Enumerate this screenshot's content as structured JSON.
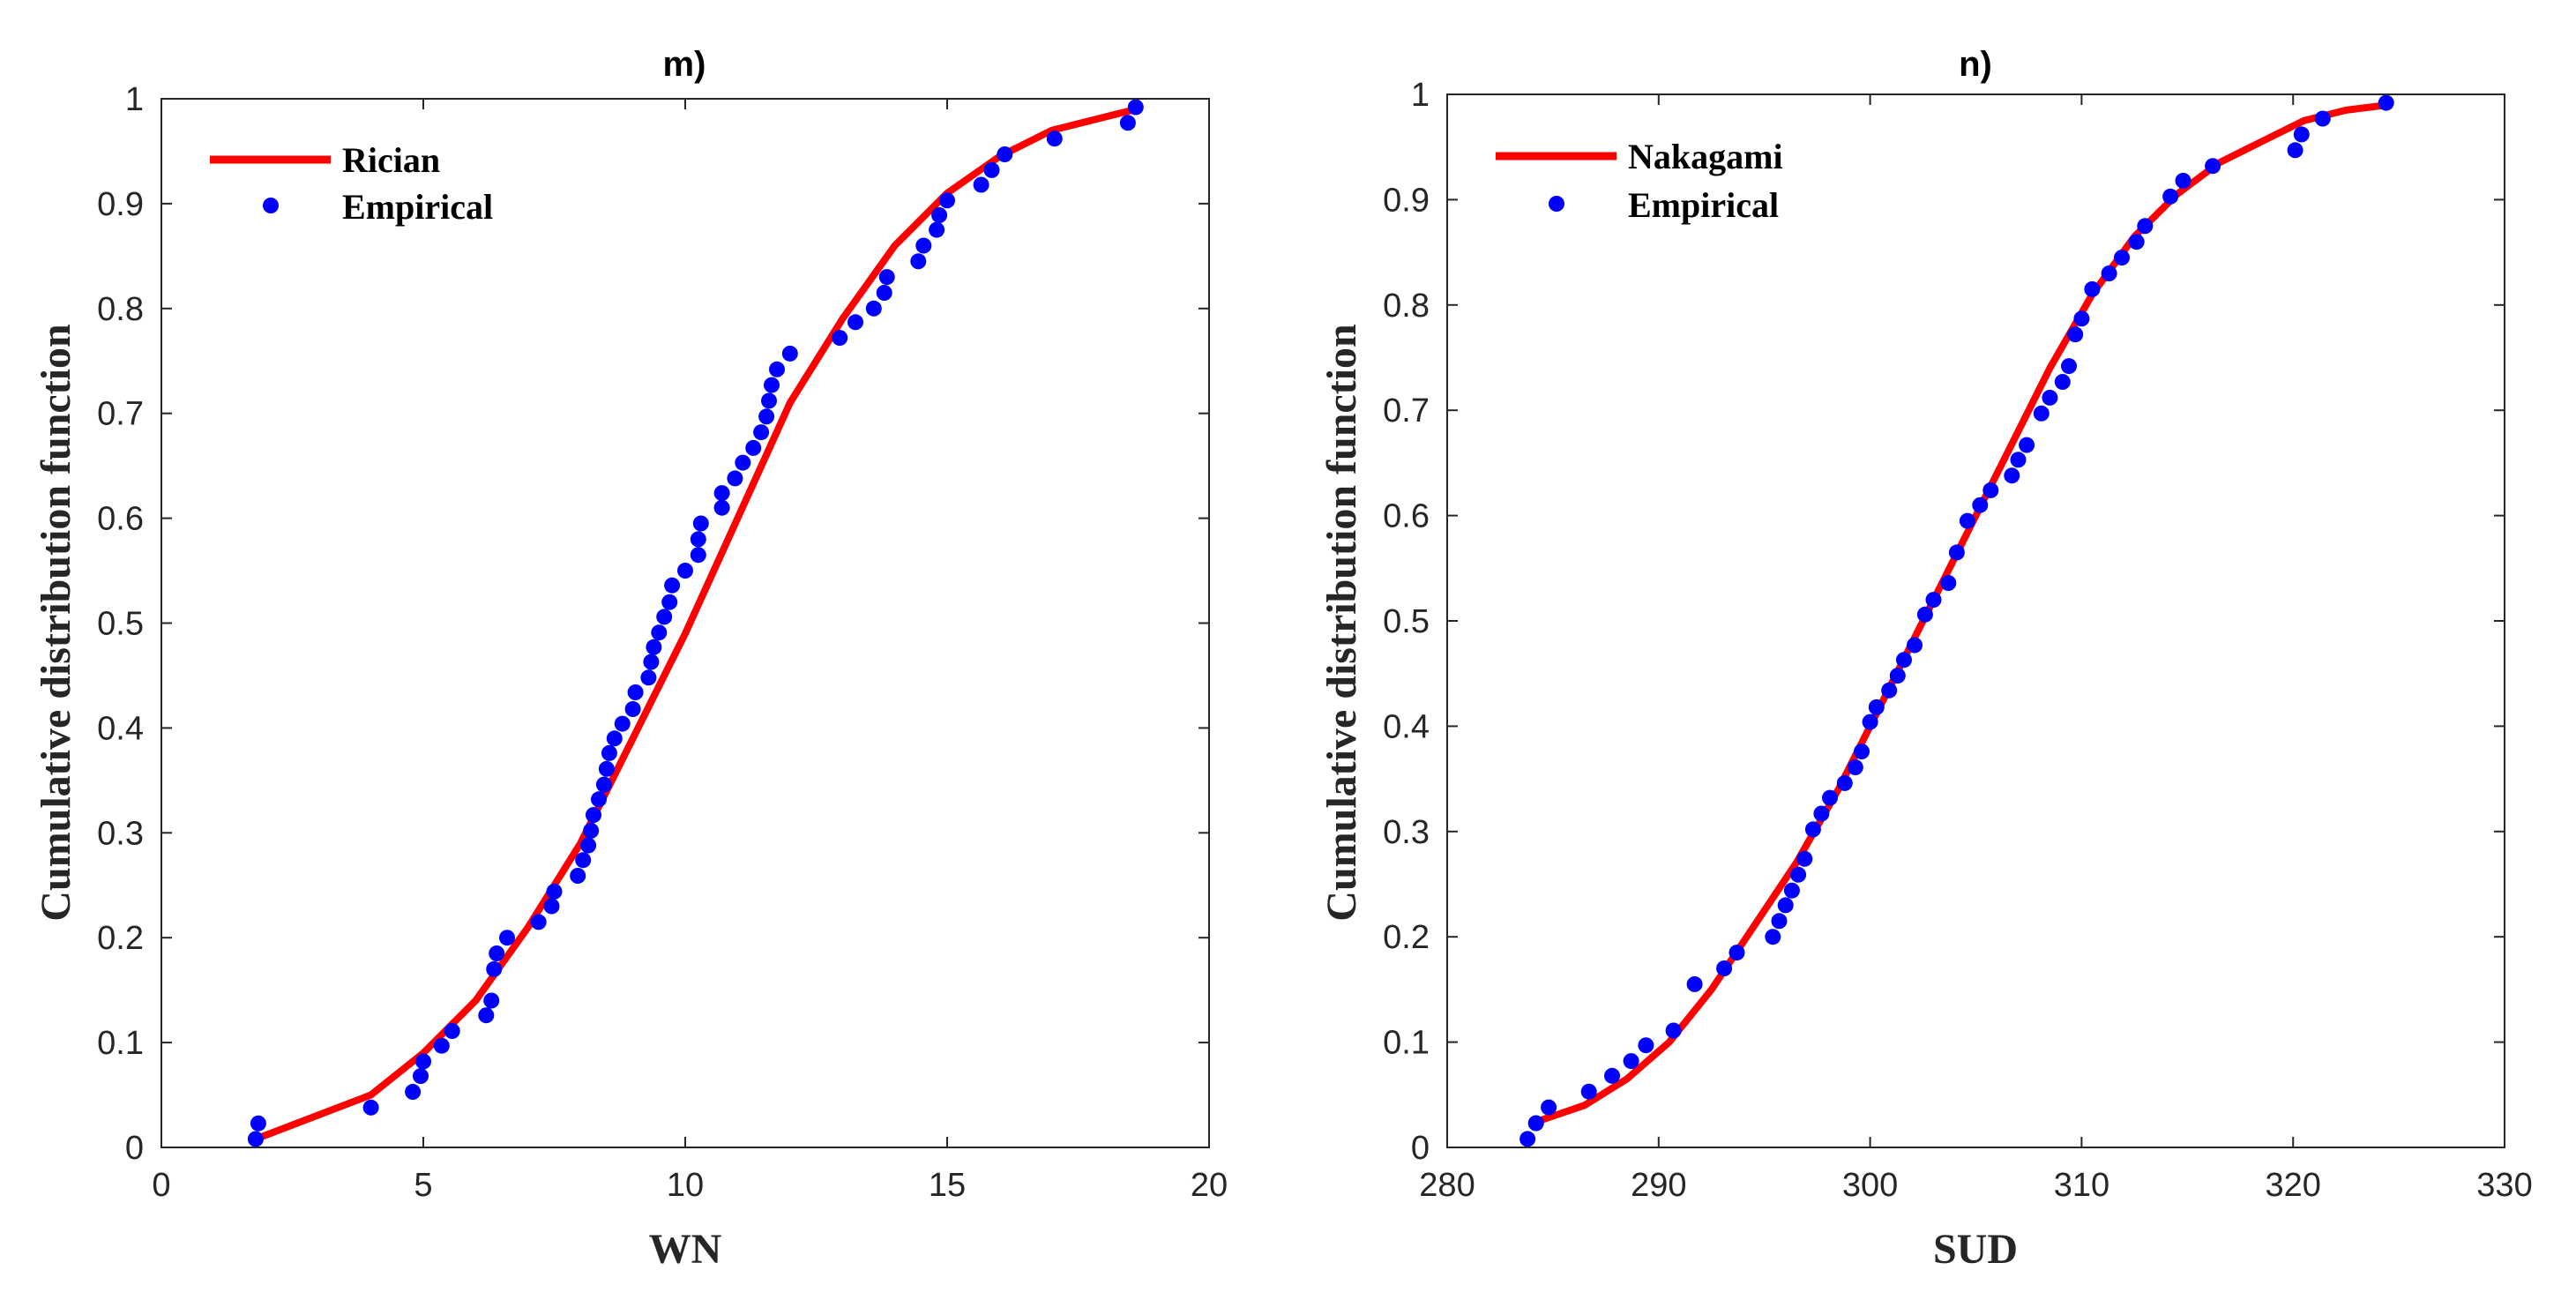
{
  "chart_data": [
    {
      "type": "line+scatter",
      "title": "m)",
      "xlabel": "WN",
      "ylabel": "Cumulative distribution function",
      "xlim": [
        0,
        20
      ],
      "ylim": [
        0,
        1
      ],
      "x_ticks": [
        0,
        5,
        10,
        15,
        20
      ],
      "y_ticks": [
        0,
        0.1,
        0.2,
        0.3,
        0.4,
        0.5,
        0.6,
        0.7,
        0.8,
        0.9,
        1
      ],
      "x_tick_labels": [
        "0",
        "5",
        "10",
        "15",
        "20"
      ],
      "y_tick_labels": [
        "0",
        "0.1",
        "0.2",
        "0.3",
        "0.4",
        "0.5",
        "0.6",
        "0.7",
        "0.8",
        "0.9",
        "1"
      ],
      "legend": {
        "position": "top-left",
        "entries": [
          "Rician",
          "Empirical"
        ]
      },
      "series": [
        {
          "name": "Rician",
          "kind": "line",
          "color": "#ff0000",
          "points": [
            [
              1.8,
              0.008
            ],
            [
              4.0,
              0.05
            ],
            [
              5.0,
              0.09
            ],
            [
              6.0,
              0.14
            ],
            [
              7.0,
              0.21
            ],
            [
              8.0,
              0.29
            ],
            [
              9.0,
              0.39
            ],
            [
              10.0,
              0.49
            ],
            [
              11.0,
              0.6
            ],
            [
              12.0,
              0.71
            ],
            [
              13.0,
              0.79
            ],
            [
              14.0,
              0.86
            ],
            [
              15.0,
              0.91
            ],
            [
              16.0,
              0.945
            ],
            [
              17.0,
              0.97
            ],
            [
              18.6,
              0.99
            ]
          ]
        },
        {
          "name": "Empirical",
          "kind": "scatter",
          "color": "#0000ff",
          "points": [
            [
              1.8,
              0.008
            ],
            [
              1.85,
              0.023
            ],
            [
              4.0,
              0.038
            ],
            [
              4.8,
              0.053
            ],
            [
              4.95,
              0.068
            ],
            [
              5.0,
              0.082
            ],
            [
              5.35,
              0.097
            ],
            [
              5.55,
              0.111
            ],
            [
              6.2,
              0.126
            ],
            [
              6.3,
              0.14
            ],
            [
              6.35,
              0.17
            ],
            [
              6.4,
              0.185
            ],
            [
              6.6,
              0.2
            ],
            [
              7.2,
              0.215
            ],
            [
              7.45,
              0.23
            ],
            [
              7.5,
              0.244
            ],
            [
              7.95,
              0.259
            ],
            [
              8.05,
              0.274
            ],
            [
              8.15,
              0.288
            ],
            [
              8.2,
              0.302
            ],
            [
              8.25,
              0.317
            ],
            [
              8.35,
              0.332
            ],
            [
              8.45,
              0.346
            ],
            [
              8.5,
              0.361
            ],
            [
              8.55,
              0.376
            ],
            [
              8.65,
              0.39
            ],
            [
              8.8,
              0.404
            ],
            [
              9.0,
              0.418
            ],
            [
              9.05,
              0.434
            ],
            [
              9.3,
              0.448
            ],
            [
              9.35,
              0.463
            ],
            [
              9.4,
              0.477
            ],
            [
              9.5,
              0.491
            ],
            [
              9.6,
              0.506
            ],
            [
              9.7,
              0.52
            ],
            [
              9.75,
              0.536
            ],
            [
              10.0,
              0.55
            ],
            [
              10.25,
              0.565
            ],
            [
              10.25,
              0.58
            ],
            [
              10.3,
              0.595
            ],
            [
              10.7,
              0.61
            ],
            [
              10.7,
              0.624
            ],
            [
              10.95,
              0.638
            ],
            [
              11.1,
              0.653
            ],
            [
              11.3,
              0.667
            ],
            [
              11.45,
              0.682
            ],
            [
              11.55,
              0.697
            ],
            [
              11.6,
              0.712
            ],
            [
              11.65,
              0.727
            ],
            [
              11.75,
              0.742
            ],
            [
              12.0,
              0.757
            ],
            [
              12.95,
              0.772
            ],
            [
              13.25,
              0.787
            ],
            [
              13.6,
              0.8
            ],
            [
              13.8,
              0.815
            ],
            [
              13.85,
              0.83
            ],
            [
              14.45,
              0.845
            ],
            [
              14.55,
              0.86
            ],
            [
              14.8,
              0.875
            ],
            [
              14.85,
              0.889
            ],
            [
              15.0,
              0.903
            ],
            [
              15.65,
              0.918
            ],
            [
              15.85,
              0.932
            ],
            [
              16.1,
              0.947
            ],
            [
              17.05,
              0.962
            ],
            [
              18.45,
              0.977
            ],
            [
              18.6,
              0.992
            ]
          ]
        }
      ]
    },
    {
      "type": "line+scatter",
      "title": "n)",
      "xlabel": "SUD",
      "ylabel": "Cumulative distribution function",
      "xlim": [
        280,
        330
      ],
      "ylim": [
        0,
        1
      ],
      "x_ticks": [
        280,
        290,
        300,
        310,
        320,
        330
      ],
      "y_ticks": [
        0,
        0.1,
        0.2,
        0.3,
        0.4,
        0.5,
        0.6,
        0.7,
        0.8,
        0.9,
        1
      ],
      "x_tick_labels": [
        "280",
        "290",
        "300",
        "310",
        "320",
        "330"
      ],
      "y_tick_labels": [
        "0",
        "0.1",
        "0.2",
        "0.3",
        "0.4",
        "0.5",
        "0.6",
        "0.7",
        "0.8",
        "0.9",
        "1"
      ],
      "legend": {
        "position": "top-left",
        "entries": [
          "Nakagami",
          "Empirical"
        ]
      },
      "series": [
        {
          "name": "Nakagami",
          "kind": "line",
          "color": "#ff0000",
          "points": [
            [
              284.3,
              0.025
            ],
            [
              286.5,
              0.04
            ],
            [
              288.5,
              0.065
            ],
            [
              290.5,
              0.1
            ],
            [
              292.5,
              0.15
            ],
            [
              294.5,
              0.21
            ],
            [
              296.5,
              0.27
            ],
            [
              298.5,
              0.34
            ],
            [
              300.5,
              0.42
            ],
            [
              302.5,
              0.5
            ],
            [
              304.5,
              0.58
            ],
            [
              306.5,
              0.66
            ],
            [
              308.5,
              0.74
            ],
            [
              310.5,
              0.81
            ],
            [
              312.5,
              0.865
            ],
            [
              314.5,
              0.905
            ],
            [
              316.5,
              0.935
            ],
            [
              318.5,
              0.955
            ],
            [
              320.5,
              0.975
            ],
            [
              322.5,
              0.985
            ],
            [
              324.5,
              0.99
            ]
          ]
        },
        {
          "name": "Empirical",
          "kind": "scatter",
          "color": "#0000ff",
          "points": [
            [
              283.8,
              0.008
            ],
            [
              284.2,
              0.023
            ],
            [
              284.8,
              0.038
            ],
            [
              286.7,
              0.053
            ],
            [
              287.8,
              0.068
            ],
            [
              288.7,
              0.082
            ],
            [
              289.4,
              0.097
            ],
            [
              290.7,
              0.111
            ],
            [
              291.7,
              0.155
            ],
            [
              293.1,
              0.17
            ],
            [
              293.7,
              0.185
            ],
            [
              295.4,
              0.2
            ],
            [
              295.7,
              0.215
            ],
            [
              296.0,
              0.23
            ],
            [
              296.3,
              0.244
            ],
            [
              296.6,
              0.259
            ],
            [
              296.9,
              0.274
            ],
            [
              297.3,
              0.302
            ],
            [
              297.7,
              0.317
            ],
            [
              298.1,
              0.332
            ],
            [
              298.8,
              0.346
            ],
            [
              299.3,
              0.361
            ],
            [
              299.6,
              0.376
            ],
            [
              300.0,
              0.404
            ],
            [
              300.3,
              0.418
            ],
            [
              300.9,
              0.434
            ],
            [
              301.3,
              0.448
            ],
            [
              301.6,
              0.463
            ],
            [
              302.1,
              0.477
            ],
            [
              302.6,
              0.506
            ],
            [
              303.0,
              0.52
            ],
            [
              303.7,
              0.536
            ],
            [
              304.1,
              0.565
            ],
            [
              304.6,
              0.595
            ],
            [
              305.2,
              0.61
            ],
            [
              305.7,
              0.624
            ],
            [
              306.7,
              0.638
            ],
            [
              307.0,
              0.653
            ],
            [
              307.4,
              0.667
            ],
            [
              308.1,
              0.697
            ],
            [
              308.5,
              0.712
            ],
            [
              309.1,
              0.727
            ],
            [
              309.4,
              0.742
            ],
            [
              309.7,
              0.772
            ],
            [
              310.0,
              0.787
            ],
            [
              310.5,
              0.815
            ],
            [
              311.3,
              0.83
            ],
            [
              311.9,
              0.845
            ],
            [
              312.6,
              0.86
            ],
            [
              313.0,
              0.875
            ],
            [
              314.2,
              0.903
            ],
            [
              314.8,
              0.918
            ],
            [
              316.2,
              0.932
            ],
            [
              320.1,
              0.947
            ],
            [
              320.4,
              0.962
            ],
            [
              321.4,
              0.977
            ],
            [
              324.4,
              0.992
            ]
          ]
        }
      ]
    }
  ]
}
